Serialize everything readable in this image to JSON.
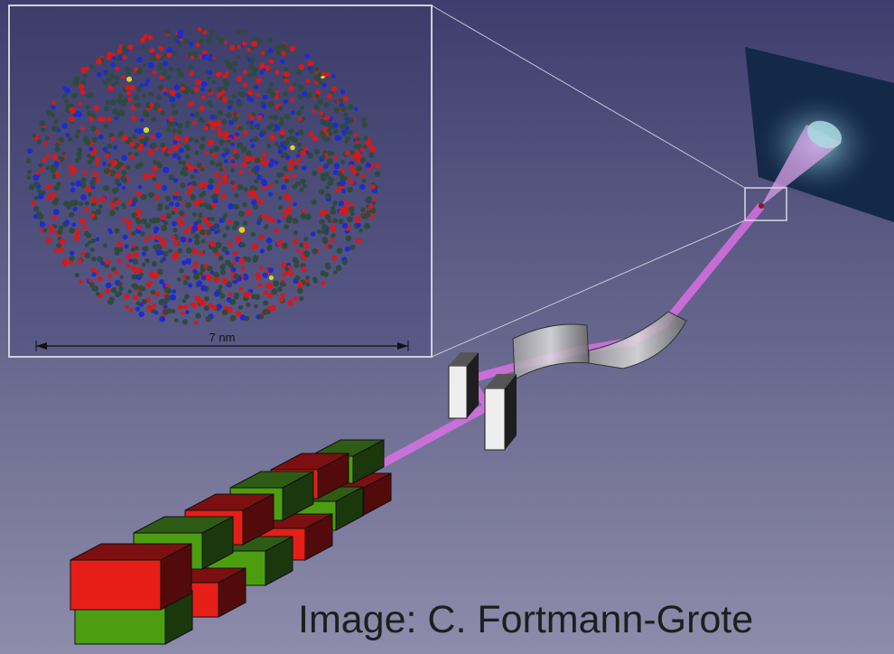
{
  "inset": {
    "scale_label": "7 nm"
  },
  "caption": "Image: C. Fortmann-Grote"
}
